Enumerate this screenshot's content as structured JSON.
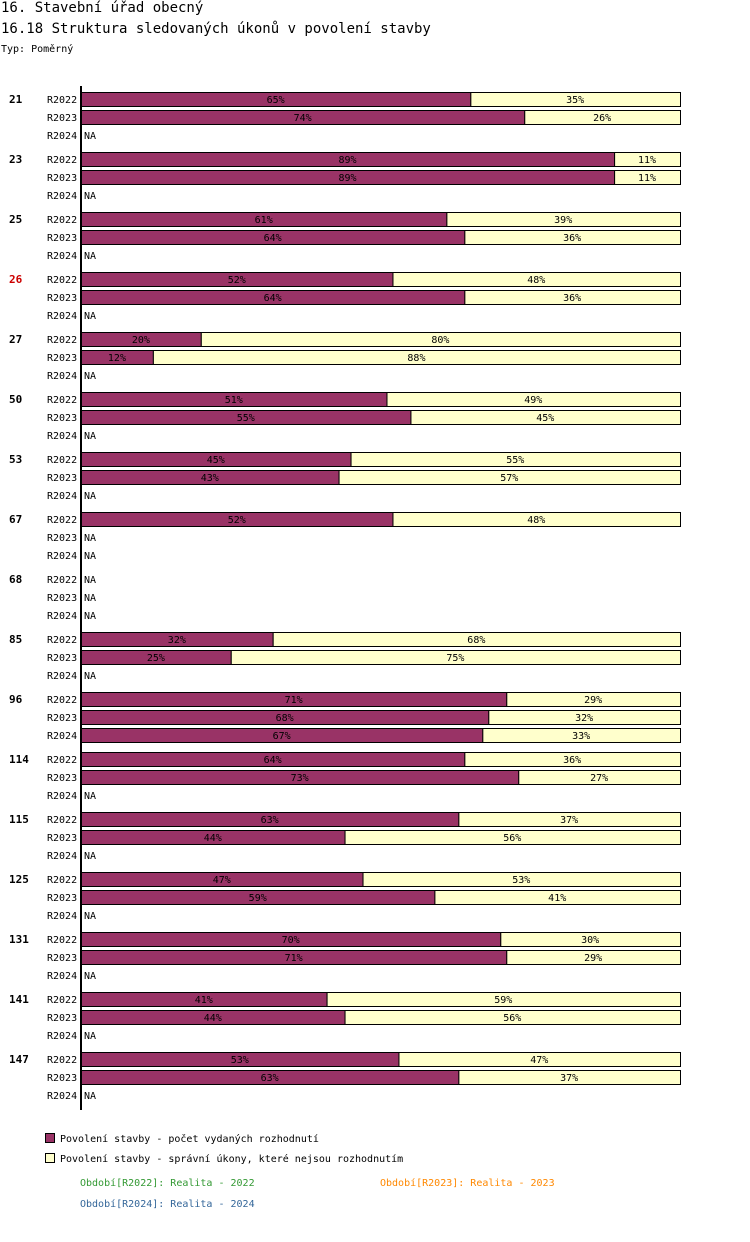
{
  "header": {
    "title": "16. Stavební úřad obecný",
    "subtitle": "16.18 Struktura sledovaných úkonů v povolení stavby",
    "type_label": "Typ: Poměrný"
  },
  "colors": {
    "series1": "#993366",
    "series2": "#ffffcc",
    "highlight_group": "#cc0000",
    "period_2022": "#339933",
    "period_2023": "#ff8800",
    "period_2024": "#336699"
  },
  "legend": {
    "series1": "Povolení stavby - počet vydaných rozhodnutí",
    "series2": "Povolení stavby - správní úkony, které nejsou rozhodnutím",
    "period_2022": "Období[R2022]: Realita - 2022",
    "period_2023": "Období[R2023]: Realita - 2023",
    "period_2024": "Období[R2024]: Realita - 2024"
  },
  "chart_data": {
    "type": "bar",
    "orientation": "horizontal",
    "stacked": "percent",
    "title": "16.18 Struktura sledovaných úkonů v povolení stavby",
    "series_names": [
      "Povolení stavby - počet vydaných rozhodnutí",
      "Povolení stavby - správní úkony, které nejsou rozhodnutím"
    ],
    "periods": [
      "R2022",
      "R2023",
      "R2024"
    ],
    "na_label": "NA",
    "highlighted_group": "26",
    "groups": [
      {
        "name": "21",
        "rows": [
          {
            "period": "R2022",
            "values": [
              65,
              35
            ]
          },
          {
            "period": "R2023",
            "values": [
              74,
              26
            ]
          },
          {
            "period": "R2024",
            "values": null
          }
        ]
      },
      {
        "name": "23",
        "rows": [
          {
            "period": "R2022",
            "values": [
              89,
              11
            ]
          },
          {
            "period": "R2023",
            "values": [
              89,
              11
            ]
          },
          {
            "period": "R2024",
            "values": null
          }
        ]
      },
      {
        "name": "25",
        "rows": [
          {
            "period": "R2022",
            "values": [
              61,
              39
            ]
          },
          {
            "period": "R2023",
            "values": [
              64,
              36
            ]
          },
          {
            "period": "R2024",
            "values": null
          }
        ]
      },
      {
        "name": "26",
        "rows": [
          {
            "period": "R2022",
            "values": [
              52,
              48
            ]
          },
          {
            "period": "R2023",
            "values": [
              64,
              36
            ]
          },
          {
            "period": "R2024",
            "values": null
          }
        ]
      },
      {
        "name": "27",
        "rows": [
          {
            "period": "R2022",
            "values": [
              20,
              80
            ]
          },
          {
            "period": "R2023",
            "values": [
              12,
              88
            ]
          },
          {
            "period": "R2024",
            "values": null
          }
        ]
      },
      {
        "name": "50",
        "rows": [
          {
            "period": "R2022",
            "values": [
              51,
              49
            ]
          },
          {
            "period": "R2023",
            "values": [
              55,
              45
            ]
          },
          {
            "period": "R2024",
            "values": null
          }
        ]
      },
      {
        "name": "53",
        "rows": [
          {
            "period": "R2022",
            "values": [
              45,
              55
            ]
          },
          {
            "period": "R2023",
            "values": [
              43,
              57
            ]
          },
          {
            "period": "R2024",
            "values": null
          }
        ]
      },
      {
        "name": "67",
        "rows": [
          {
            "period": "R2022",
            "values": [
              52,
              48
            ]
          },
          {
            "period": "R2023",
            "values": null
          },
          {
            "period": "R2024",
            "values": null
          }
        ]
      },
      {
        "name": "68",
        "rows": [
          {
            "period": "R2022",
            "values": null
          },
          {
            "period": "R2023",
            "values": null
          },
          {
            "period": "R2024",
            "values": null
          }
        ]
      },
      {
        "name": "85",
        "rows": [
          {
            "period": "R2022",
            "values": [
              32,
              68
            ]
          },
          {
            "period": "R2023",
            "values": [
              25,
              75
            ]
          },
          {
            "period": "R2024",
            "values": null
          }
        ]
      },
      {
        "name": "96",
        "rows": [
          {
            "period": "R2022",
            "values": [
              71,
              29
            ]
          },
          {
            "period": "R2023",
            "values": [
              68,
              32
            ]
          },
          {
            "period": "R2024",
            "values": [
              67,
              33
            ]
          }
        ]
      },
      {
        "name": "114",
        "rows": [
          {
            "period": "R2022",
            "values": [
              64,
              36
            ]
          },
          {
            "period": "R2023",
            "values": [
              73,
              27
            ]
          },
          {
            "period": "R2024",
            "values": null
          }
        ]
      },
      {
        "name": "115",
        "rows": [
          {
            "period": "R2022",
            "values": [
              63,
              37
            ]
          },
          {
            "period": "R2023",
            "values": [
              44,
              56
            ]
          },
          {
            "period": "R2024",
            "values": null
          }
        ]
      },
      {
        "name": "125",
        "rows": [
          {
            "period": "R2022",
            "values": [
              47,
              53
            ]
          },
          {
            "period": "R2023",
            "values": [
              59,
              41
            ]
          },
          {
            "period": "R2024",
            "values": null
          }
        ]
      },
      {
        "name": "131",
        "rows": [
          {
            "period": "R2022",
            "values": [
              70,
              30
            ]
          },
          {
            "period": "R2023",
            "values": [
              71,
              29
            ]
          },
          {
            "period": "R2024",
            "values": null
          }
        ]
      },
      {
        "name": "141",
        "rows": [
          {
            "period": "R2022",
            "values": [
              41,
              59
            ]
          },
          {
            "period": "R2023",
            "values": [
              44,
              56
            ]
          },
          {
            "period": "R2024",
            "values": null
          }
        ]
      },
      {
        "name": "147",
        "rows": [
          {
            "period": "R2022",
            "values": [
              53,
              47
            ]
          },
          {
            "period": "R2023",
            "values": [
              63,
              37
            ]
          },
          {
            "period": "R2024",
            "values": null
          }
        ]
      }
    ]
  }
}
